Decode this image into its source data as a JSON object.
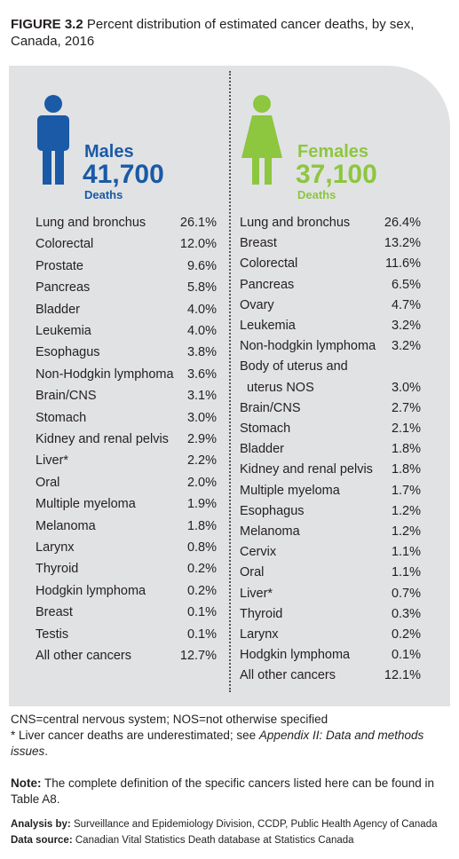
{
  "header": {
    "figure": "FIGURE 3.2",
    "title": "Percent distribution of estimated cancer deaths, by sex, Canada, 2016"
  },
  "males": {
    "heading": "Males",
    "count": "41,700",
    "unit": "Deaths",
    "rows": [
      [
        "Lung and bronchus",
        "26.1%"
      ],
      [
        "Colorectal",
        "12.0%"
      ],
      [
        "Prostate",
        "9.6%"
      ],
      [
        "Pancreas",
        "5.8%"
      ],
      [
        "Bladder",
        "4.0%"
      ],
      [
        "Leukemia",
        "4.0%"
      ],
      [
        "Esophagus",
        "3.8%"
      ],
      [
        "Non-Hodgkin lymphoma",
        "3.6%"
      ],
      [
        "Brain/CNS",
        "3.1%"
      ],
      [
        "Stomach",
        "3.0%"
      ],
      [
        "Kidney and renal pelvis",
        "2.9%"
      ],
      [
        "Liver*",
        "2.2%"
      ],
      [
        "Oral",
        "2.0%"
      ],
      [
        "Multiple myeloma",
        "1.9%"
      ],
      [
        "Melanoma",
        "1.8%"
      ],
      [
        "Larynx",
        "0.8%"
      ],
      [
        "Thyroid",
        "0.2%"
      ],
      [
        "Hodgkin lymphoma",
        "0.2%"
      ],
      [
        "Breast",
        "0.1%"
      ],
      [
        "Testis",
        "0.1%"
      ],
      [
        "All other cancers",
        "12.7%"
      ]
    ]
  },
  "females": {
    "heading": "Females",
    "count": "37,100",
    "unit": "Deaths",
    "rows": [
      [
        "Lung and bronchus",
        "26.4%"
      ],
      [
        "Breast",
        "13.2%"
      ],
      [
        "Colorectal",
        "11.6%"
      ],
      [
        "Pancreas",
        "6.5%"
      ],
      [
        "Ovary",
        "4.7%"
      ],
      [
        "Leukemia",
        "3.2%"
      ],
      [
        "Non-hodgkin lymphoma",
        "3.2%"
      ],
      [
        "Body of uterus and",
        "uterus NOS",
        "3.0%"
      ],
      [
        "Brain/CNS",
        "2.7%"
      ],
      [
        "Stomach",
        "2.1%"
      ],
      [
        "Bladder",
        "1.8%"
      ],
      [
        "Kidney and renal pelvis",
        "1.8%"
      ],
      [
        "Multiple myeloma",
        "1.7%"
      ],
      [
        "Esophagus",
        "1.2%"
      ],
      [
        "Melanoma",
        "1.2%"
      ],
      [
        "Cervix",
        "1.1%"
      ],
      [
        "Oral",
        "1.1%"
      ],
      [
        "Liver*",
        "0.7%"
      ],
      [
        "Thyroid",
        "0.3%"
      ],
      [
        "Larynx",
        "0.2%"
      ],
      [
        "Hodgkin lymphoma",
        "0.1%"
      ],
      [
        "All other cancers",
        "12.1%"
      ]
    ]
  },
  "notes": {
    "abbreviations": "CNS=central nervous system; NOS=not otherwise specified",
    "liver": [
      "* Liver cancer deaths are underestimated; see ",
      "Appendix II: Data and methods issues",
      "."
    ],
    "note_label": "Note:",
    "note": "The complete definition of the specific cancers listed here can be found in Table A8.",
    "analysis_label": "Analysis by:",
    "analysis": "Surveillance and Epidemiology Division, CCDP, Public Health Agency of Canada",
    "source_label": "Data source:",
    "source": "Canadian Vital Statistics Death database at Statistics Canada"
  }
}
